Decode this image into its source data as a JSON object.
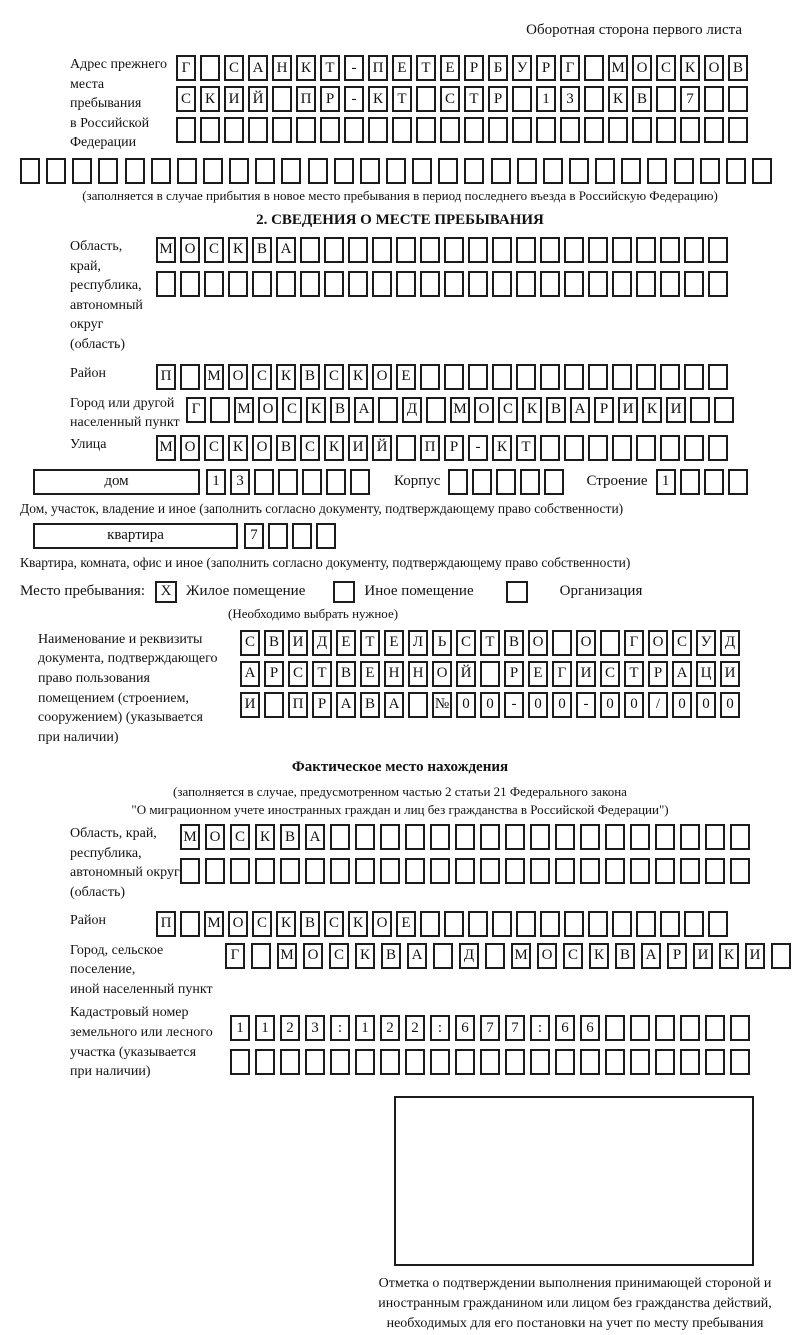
{
  "header": {
    "back_side": "Оборотная сторона первого листа"
  },
  "prev_address": {
    "label": "Адрес прежнего\nместа пребывания\nв Российской\nФедерации",
    "row1": {
      "t": "Г САНКТ-ПЕТЕРБУРГ МОСКОВ",
      "n": 24
    },
    "row2": {
      "t": "СКИЙ ПР-КТ СТР 13 КВ 7",
      "n": 24
    },
    "row3": {
      "t": "",
      "n": 24
    },
    "row4": {
      "t": "",
      "n": 29
    },
    "note": "(заполняется в случае прибытия в новое место пребывания в период последнего въезда в Российскую Федерацию)"
  },
  "section2": {
    "title": "2. СВЕДЕНИЯ О МЕСТЕ ПРЕБЫВАНИЯ",
    "region": {
      "label": "Область, край,\nреспублика,\nавтономный\nокруг (область)",
      "row1": {
        "t": "МОСКВА",
        "n": 24
      },
      "row2": {
        "t": "",
        "n": 24
      }
    },
    "district": {
      "label": "Район",
      "row": {
        "t": "П МОСКВСКОЕ",
        "n": 24
      }
    },
    "city": {
      "label": "Город или другой\nнаселенный пункт",
      "row": {
        "t": "Г МОСКВА Д МОСКВАРИКИ",
        "n": 23
      }
    },
    "street": {
      "label": "Улица",
      "row": {
        "t": "МОСКОВСКИЙ ПР-КТ",
        "n": 24
      }
    },
    "house": {
      "box_label": "дом",
      "cells": {
        "t": "13",
        "n": 7
      },
      "korpus_label": "Корпус",
      "korpus_cells": {
        "t": "",
        "n": 5
      },
      "stroenie_label": "Строение",
      "stroenie_cells": {
        "t": "1",
        "n": 4
      },
      "note": "Дом, участок, владение и иное (заполнить согласно документу, подтверждающему право собственности)"
    },
    "apartment": {
      "box_label": "квартира",
      "cells": {
        "t": "7",
        "n": 4
      },
      "note": "Квартира, комната, офис и иное (заполнить согласно документу, подтверждающему право собственности)"
    },
    "place_type": {
      "label": "Место пребывания:",
      "options": [
        {
          "label": "Жилое помещение",
          "mark": "X"
        },
        {
          "label": "Иное помещение",
          "mark": ""
        },
        {
          "label": "Организация",
          "mark": ""
        }
      ],
      "note": "(Необходимо выбрать нужное)"
    },
    "document": {
      "label": "Наименование и реквизиты\nдокумента, подтверждающего\nправо пользования\nпомещением (строением,\nсооружением) (указывается\nпри наличии)",
      "row1": {
        "t": "СВИДЕТЕЛЬСТВО О ГОСУД",
        "n": 21
      },
      "row2": {
        "t": "АРСТВЕННОЙ РЕГИСТРАЦИ",
        "n": 21
      },
      "row3": {
        "t": "И ПРАВА №00-00-00/000",
        "n": 21
      }
    }
  },
  "actual_location": {
    "title": "Фактическое место нахождения",
    "note1": "(заполняется в случае, предусмотренном частью 2 статьи 21 Федерального закона",
    "note2": "\"О миграционном учете иностранных граждан и лиц без гражданства в Российской Федерации\")",
    "region": {
      "label": "Область, край,\nреспублика,\nавтономный округ\n(область)",
      "row1": {
        "t": "МОСКВА",
        "n": 23
      },
      "row2": {
        "t": "",
        "n": 23
      }
    },
    "district": {
      "label": "Район",
      "row": {
        "t": "П МОСКВСКОЕ",
        "n": 24
      }
    },
    "city": {
      "label": "Город, сельское поселение,\nиной населенный пункт",
      "row": {
        "t": "Г МОСКВА Д МОСКВАРИКИ",
        "n": 22
      }
    },
    "cadastral": {
      "label": "Кадастровый номер\nземельного или лесного\nучастка (указывается\nпри наличии)",
      "row1": {
        "t": "1123:122:677:66",
        "n": 21
      },
      "row2": {
        "t": "",
        "n": 21
      }
    },
    "stamp_note": "Отметка о подтверждении выполнения принимающей стороной и иностранным гражданином или лицом без гражданства действий, необходимых для его постановки на учет по месту пребывания"
  }
}
